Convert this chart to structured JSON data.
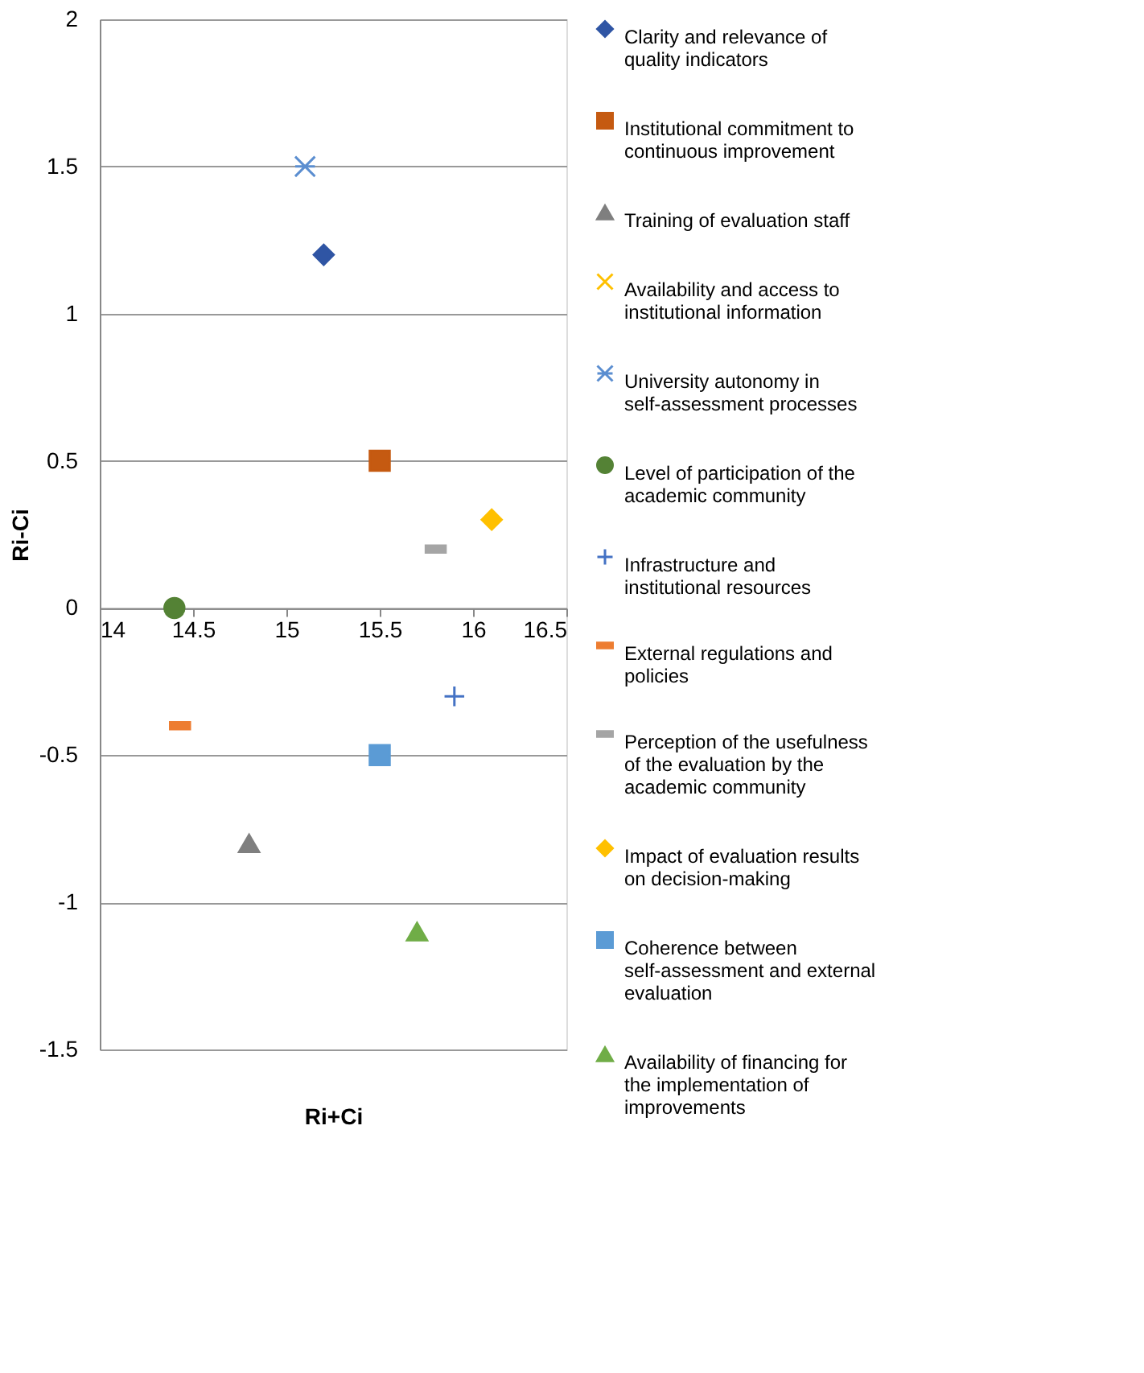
{
  "chart_data": {
    "type": "scatter",
    "xlabel": "Ri+Ci",
    "ylabel": "Ri-Ci",
    "xlim": [
      14,
      16.5
    ],
    "xticks": [
      14,
      14.5,
      15,
      15.5,
      16,
      16.5
    ],
    "ylim": [
      -1.5,
      2
    ],
    "yticks": [
      -1.5,
      -1,
      -0.5,
      0,
      0.5,
      1,
      1.5,
      2
    ],
    "grid": "y",
    "legend": "right",
    "series": [
      {
        "name": "Clarity and relevance of quality indicators",
        "color": "#2f55a4",
        "marker": "diamond",
        "x": [
          15.2
        ],
        "values": [
          1.2
        ]
      },
      {
        "name": "Institutional commitment to continuous improvement",
        "color": "#c55a11",
        "marker": "square",
        "x": [
          15.5
        ],
        "values": [
          0.5
        ]
      },
      {
        "name": "Training of evaluation staff",
        "color": "#7f7f7f",
        "marker": "triangle",
        "x": [
          14.8
        ],
        "values": [
          -0.8
        ]
      },
      {
        "name": "Availability and access to institutional information",
        "color": "#ffc000",
        "marker": "x",
        "x": [
          null
        ],
        "values": [
          null
        ]
      },
      {
        "name": "University autonomy in self-assessment processes",
        "color": "#5b8ed0",
        "marker": "cross",
        "x": [
          15.1
        ],
        "values": [
          1.5
        ]
      },
      {
        "name": "Level of participation of the academic community",
        "color": "#548235",
        "marker": "circle",
        "x": [
          14.4
        ],
        "values": [
          0
        ]
      },
      {
        "name": "Infrastructure and institutional resources",
        "color": "#4472c4",
        "marker": "plus",
        "x": [
          15.9
        ],
        "values": [
          -0.3
        ]
      },
      {
        "name": "External regulations and policies",
        "color": "#ed7d31",
        "x": [
          14.43
        ],
        "values": [
          -0.4
        ]
      },
      {
        "name": "Perception of the usefulness of the evaluation by the academic community",
        "color": "#a5a5a5",
        "x": [
          15.8
        ],
        "values": [
          0.2
        ]
      },
      {
        "name": "Impact of evaluation results on decision-making",
        "color": "#ffc000",
        "marker": "diamond",
        "x": [
          16.1
        ],
        "values": [
          0.3
        ]
      },
      {
        "name": "Coherence between self-assessment and external evaluation",
        "color": "#5b9bd5",
        "marker": "square",
        "x": [
          15.5
        ],
        "values": [
          -0.5
        ]
      },
      {
        "name": "Availability of financing for the implementation of improvements",
        "color": "#70ad47",
        "marker": "triangle",
        "x": [
          15.7
        ],
        "values": [
          -1.1
        ]
      }
    ]
  }
}
